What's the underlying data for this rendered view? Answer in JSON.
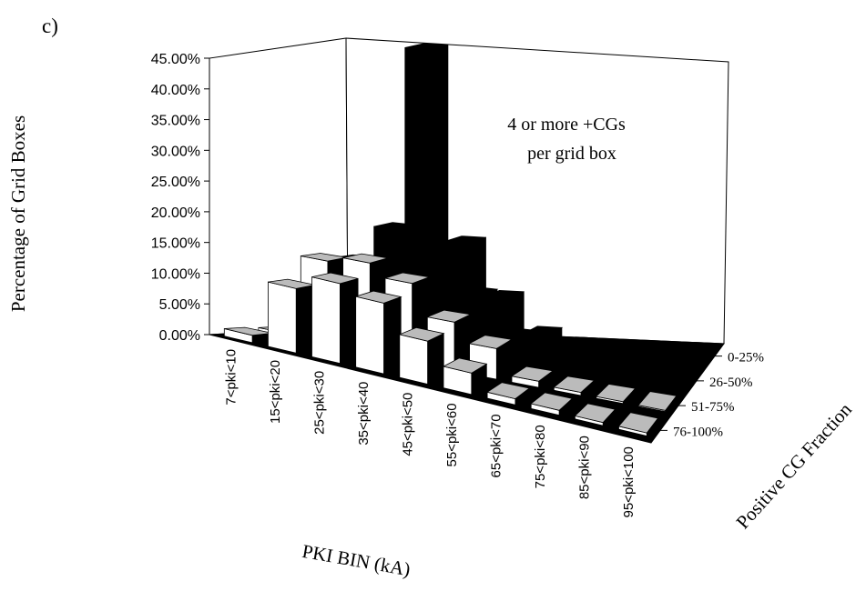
{
  "panel_label": "c)",
  "chart_data": {
    "type": "bar",
    "subtype": "3d-grouped-bar",
    "title": "",
    "annotation_lines": [
      "4 or more +CGs",
      "per grid box"
    ],
    "xlabel": "PKI BIN (kA)",
    "ylabel": "Percentage of Grid Boxes",
    "zlabel": "Positive CG Fraction",
    "ylim": [
      0,
      45
    ],
    "ytick_labels": [
      "0.00%",
      "5.00%",
      "10.00%",
      "15.00%",
      "20.00%",
      "25.00%",
      "30.00%",
      "35.00%",
      "40.00%",
      "45.00%"
    ],
    "categories": [
      "7<pki<10",
      "15<pki<20",
      "25<pki<30",
      "35<pki<40",
      "45<pki<50",
      "55<pki<60",
      "65<pki<70",
      "75<pki<80",
      "85<pki<90",
      "95<pki<100"
    ],
    "series": [
      {
        "name": "0-25%",
        "color": "#000000",
        "values": [
          2.0,
          9.0,
          47.0,
          16.0,
          7.5,
          2.0,
          0.6,
          0.3,
          0.2,
          0.1
        ]
      },
      {
        "name": "26-50%",
        "color": "#111111",
        "values": [
          0.5,
          13.0,
          19.0,
          15.0,
          10.0,
          4.0,
          0.8,
          0.4,
          0.2,
          0.1
        ]
      },
      {
        "name": "51-75%",
        "color": "#ffffff",
        "values": [
          1.0,
          14.0,
          15.0,
          13.0,
          8.0,
          5.0,
          1.0,
          0.5,
          0.3,
          0.2
        ]
      },
      {
        "name": "76-100%",
        "color": "#ffffff",
        "values": [
          1.2,
          10.5,
          13.0,
          11.5,
          7.0,
          3.5,
          1.0,
          0.8,
          0.5,
          0.5
        ]
      }
    ],
    "grid": false,
    "legend": "none"
  }
}
